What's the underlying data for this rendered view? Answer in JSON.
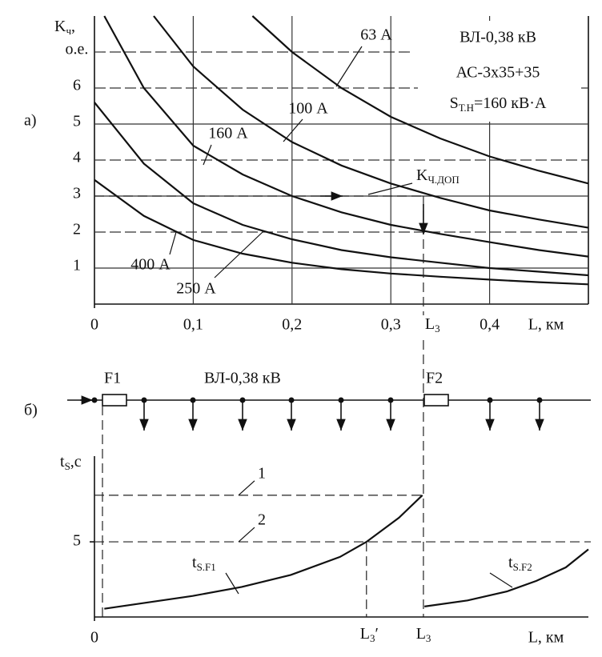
{
  "chart_data": [
    {
      "type": "line",
      "panel_label": "а)",
      "ylabel": [
        "K",
        "ч",
        ","
      ],
      "xlabel": "L, км",
      "xlim": [
        0,
        0.5
      ],
      "ylim": [
        0,
        8
      ],
      "xticks": [
        0,
        {
          "value": 0.1,
          "label": "0,1"
        },
        {
          "value": 0.2,
          "label": "0,2"
        },
        {
          "value": 0.3,
          "label": "0,3"
        },
        {
          "value": 0.4,
          "label": "0,4"
        }
      ],
      "yticks": [
        1,
        2,
        3,
        4,
        5,
        6,
        {
          "value": 7,
          "label": "о.е."
        }
      ],
      "grid": true,
      "color": "#111111",
      "series": [
        {
          "name": "400 А",
          "x": [
            0,
            0.05,
            0.1,
            0.15,
            0.2,
            0.25,
            0.3,
            0.35,
            0.4,
            0.45,
            0.5
          ],
          "values": [
            3.45,
            2.45,
            1.78,
            1.4,
            1.15,
            0.97,
            0.85,
            0.76,
            0.68,
            0.61,
            0.55
          ]
        },
        {
          "name": "250 А",
          "x": [
            0,
            0.05,
            0.1,
            0.15,
            0.2,
            0.25,
            0.3,
            0.35,
            0.4,
            0.45,
            0.5
          ],
          "values": [
            5.6,
            3.9,
            2.8,
            2.2,
            1.8,
            1.5,
            1.3,
            1.15,
            1.0,
            0.9,
            0.8
          ]
        },
        {
          "name": "160 А",
          "x": [
            0.01,
            0.05,
            0.1,
            0.15,
            0.2,
            0.25,
            0.3,
            0.35,
            0.4,
            0.45,
            0.5
          ],
          "values": [
            8.0,
            6.0,
            4.4,
            3.6,
            3.0,
            2.55,
            2.2,
            1.95,
            1.72,
            1.5,
            1.32
          ]
        },
        {
          "name": "100 А",
          "x": [
            0.06,
            0.1,
            0.15,
            0.2,
            0.25,
            0.3,
            0.35,
            0.4,
            0.45,
            0.5
          ],
          "values": [
            8.0,
            6.6,
            5.4,
            4.5,
            3.85,
            3.35,
            2.95,
            2.6,
            2.35,
            2.12
          ]
        },
        {
          "name": "63 А",
          "x": [
            0.16,
            0.2,
            0.25,
            0.3,
            0.35,
            0.4,
            0.45,
            0.5
          ],
          "values": [
            8.0,
            7.0,
            6.0,
            5.2,
            4.6,
            4.1,
            3.7,
            3.35
          ]
        }
      ],
      "notes": [
        "ВЛ-0,38 кВ",
        "АС-3х35+35",
        [
          "S",
          "Т.Н",
          "=160 кВ·А"
        ]
      ],
      "threshold": {
        "label": [
          "K",
          "Ч.ДОП"
        ],
        "value": 3
      },
      "marker": {
        "label": [
          "L",
          "3"
        ],
        "x": 0.333
      }
    },
    {
      "type": "line",
      "ylabel": [
        "t",
        "S",
        ",c"
      ],
      "xlabel": "L, км",
      "xlim": [
        0,
        0.503
      ],
      "ylim": [
        0,
        10.7
      ],
      "xticks": [
        0
      ],
      "yticks": [
        5
      ],
      "color": "#111111",
      "series": [
        {
          "name": [
            "t",
            "S.F1"
          ],
          "x": [
            0.01,
            0.1,
            0.15,
            0.2,
            0.25,
            0.277,
            0.31,
            0.334
          ],
          "values": [
            0.55,
            1.4,
            2.0,
            2.8,
            4.0,
            5.0,
            6.6,
            8.1
          ]
        },
        {
          "name": [
            "t",
            "S.F2"
          ],
          "x": [
            0.336,
            0.38,
            0.42,
            0.45,
            0.48,
            0.503
          ],
          "values": [
            0.7,
            1.1,
            1.7,
            2.4,
            3.3,
            4.5
          ]
        }
      ],
      "levels": [
        {
          "label": "1",
          "value": 8.1
        },
        {
          "label": "2",
          "value": 5
        }
      ],
      "markers": [
        {
          "label": [
            "L",
            "3"
          ],
          "x": 0.334
        },
        {
          "label": [
            "L",
            "3",
            "′"
          ],
          "x": 0.277
        }
      ]
    }
  ],
  "diagram": {
    "panel_label": "б)",
    "line_label": "ВЛ-0,38 кВ",
    "breakers": [
      "F1",
      "F2"
    ]
  }
}
